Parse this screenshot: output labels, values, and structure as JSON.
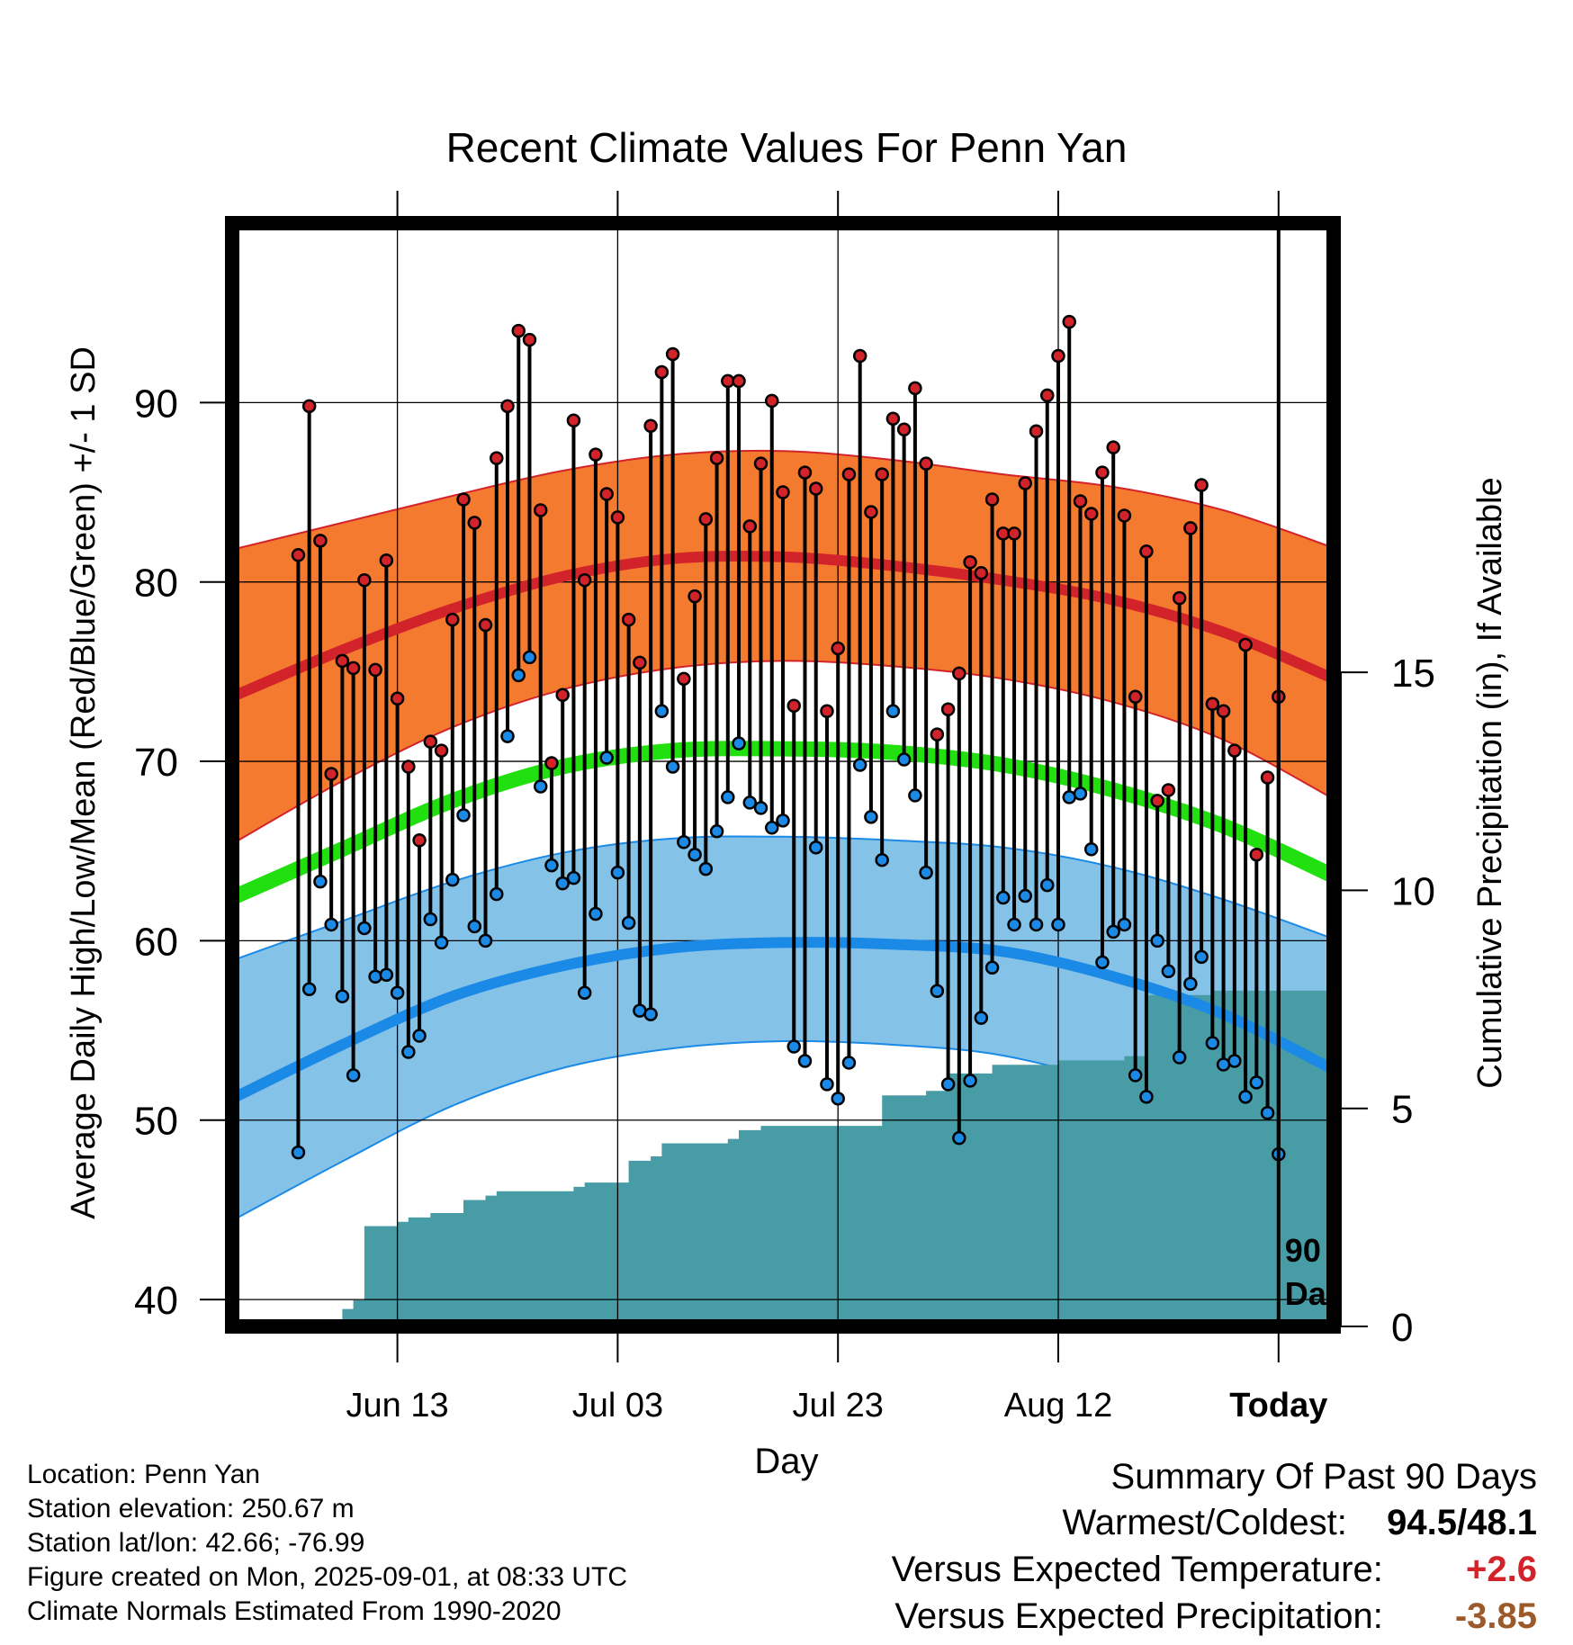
{
  "title": "Recent Climate Values For Penn Yan",
  "xlabel": "Day",
  "ylabel_left": "Average Daily High/Low/Mean (Red/Blue/Green) +/- 1 SD",
  "ylabel_right": "Cumulative Precipitation (in), If Available",
  "days_marker": [
    "90",
    "Days"
  ],
  "info": {
    "location": "Location: Penn Yan",
    "elevation": "Station elevation: 250.67 m",
    "latlon": "Station lat/lon: 42.66; -76.99",
    "created": "Figure created on Mon, 2025-09-01, at 08:33 UTC",
    "normals": "Climate Normals Estimated From 1990-2020"
  },
  "summary": {
    "heading": "Summary Of Past 90 Days",
    "warm_cold_label": "Warmest/Coldest:",
    "warm_cold_value": "94.5/48.1",
    "temp_label": "Versus Expected Temperature:",
    "temp_value": "+2.6",
    "precip_label": "Versus Expected Precipitation:",
    "precip_value": "-3.85"
  },
  "colors": {
    "high_band": "#f47a30",
    "high_line": "#d2232a",
    "low_band": "#85c2e8",
    "low_line": "#1a8ae6",
    "mean_line": "#22e010",
    "precip_fill": "#489ca6",
    "high_dot": "#d2232a",
    "low_dot": "#1a8ae6",
    "temp_anomaly": "#d2232a",
    "precip_anomaly": "#9c5a2a"
  },
  "chart_data": {
    "type": "line",
    "x_start_day": -89,
    "x_range_days": [
      -95,
      5
    ],
    "x_ticks": [
      {
        "day": -80,
        "label": "Jun 13"
      },
      {
        "day": -60,
        "label": "Jul 03"
      },
      {
        "day": -40,
        "label": "Jul 23"
      },
      {
        "day": -20,
        "label": "Aug 12"
      },
      {
        "day": 0,
        "label": "Today"
      }
    ],
    "y_temp_range": [
      38.5,
      100
    ],
    "y_temp_ticks": [
      40,
      50,
      60,
      70,
      80,
      90
    ],
    "y_precip_range": [
      0,
      25.3
    ],
    "y_precip_ticks": [
      0,
      5,
      10,
      15
    ],
    "grid": true,
    "normals": {
      "days": [
        -95,
        -85,
        -75,
        -65,
        -55,
        -45,
        -35,
        -25,
        -15,
        -5,
        5
      ],
      "high_mean": [
        73.6,
        76.2,
        78.5,
        80.3,
        81.3,
        81.4,
        80.9,
        80.1,
        79.0,
        77.2,
        74.6
      ],
      "high_upper": [
        81.8,
        83.3,
        84.8,
        86.2,
        87.1,
        87.3,
        86.8,
        86.0,
        85.3,
        84.0,
        81.9
      ],
      "high_lower": [
        65.4,
        68.9,
        71.9,
        74.0,
        75.2,
        75.6,
        75.3,
        74.6,
        73.3,
        71.2,
        67.9
      ],
      "mean": [
        62.4,
        65.1,
        67.8,
        69.7,
        70.6,
        70.7,
        70.5,
        69.8,
        68.4,
        66.4,
        63.6
      ],
      "low_mean": [
        51.2,
        54.2,
        56.9,
        58.6,
        59.6,
        59.9,
        59.8,
        59.4,
        58.0,
        55.9,
        52.8
      ],
      "low_upper": [
        58.9,
        61.1,
        63.3,
        64.9,
        65.7,
        65.8,
        65.6,
        65.2,
        64.1,
        62.3,
        60.1
      ],
      "low_lower": [
        44.4,
        47.7,
        50.8,
        52.9,
        54.0,
        54.4,
        54.2,
        53.6,
        51.9,
        48.8,
        45.2
      ]
    },
    "series": [
      {
        "name": "High",
        "values": [
          81.5,
          89.8,
          82.3,
          69.3,
          75.6,
          75.2,
          80.1,
          75.1,
          81.2,
          73.5,
          69.7,
          65.6,
          71.1,
          70.6,
          77.9,
          84.6,
          83.3,
          77.6,
          86.9,
          89.8,
          94.0,
          93.5,
          84.0,
          69.9,
          73.7,
          89.0,
          80.1,
          87.1,
          84.9,
          83.6,
          77.9,
          75.5,
          88.7,
          91.7,
          92.7,
          74.6,
          79.2,
          83.5,
          86.9,
          91.2,
          91.2,
          83.1,
          86.6,
          90.1,
          85.0,
          73.1,
          86.1,
          85.2,
          72.8,
          76.3,
          86.0,
          92.6,
          83.9,
          86.0,
          89.1,
          88.5,
          90.8,
          86.6,
          71.5,
          72.9,
          74.9,
          81.1,
          80.5,
          84.6,
          82.7,
          82.7,
          85.5,
          88.4,
          90.4,
          92.6,
          94.5,
          84.5,
          83.8,
          86.1,
          87.5,
          83.7,
          73.6,
          81.7,
          67.8,
          68.4,
          79.1,
          83.0,
          85.4,
          73.2,
          72.8,
          70.6,
          76.5,
          64.8,
          69.1,
          73.6
        ]
      },
      {
        "name": "Low",
        "values": [
          48.2,
          57.3,
          63.3,
          60.9,
          56.9,
          52.5,
          60.7,
          58.0,
          58.1,
          57.1,
          53.8,
          54.7,
          61.2,
          59.9,
          63.4,
          67.0,
          60.8,
          60.0,
          62.6,
          71.4,
          74.8,
          75.8,
          68.6,
          64.2,
          63.2,
          63.5,
          57.1,
          61.5,
          70.2,
          63.8,
          61.0,
          56.1,
          55.9,
          72.8,
          69.7,
          65.5,
          64.8,
          64.0,
          66.1,
          68.0,
          71.0,
          67.7,
          67.4,
          66.3,
          66.7,
          54.1,
          53.3,
          65.2,
          52.0,
          51.2,
          53.2,
          69.8,
          66.9,
          64.5,
          72.8,
          70.1,
          68.1,
          63.8,
          57.2,
          52.0,
          49.0,
          52.2,
          55.7,
          58.5,
          62.4,
          60.9,
          62.5,
          60.9,
          63.1,
          60.9,
          68.0,
          68.2,
          65.1,
          58.8,
          60.5,
          60.9,
          52.5,
          51.3,
          60.0,
          58.3,
          53.5,
          57.6,
          59.1,
          54.3,
          53.1,
          53.3,
          51.3,
          52.1,
          50.4,
          48.1
        ]
      },
      {
        "name": "Cumulative Precipitation",
        "days": [
          -87,
          -85,
          -84,
          -83,
          -80,
          -79,
          -77,
          -76,
          -74,
          -72,
          -71,
          -66,
          -64,
          -63,
          -60,
          -59,
          -57,
          -56,
          -54,
          -50,
          -49,
          -47,
          -43,
          -39,
          -38,
          -36,
          -32,
          -31,
          -30,
          -28,
          -26,
          -24,
          -22,
          -20,
          -18,
          -14,
          -12,
          -10,
          -8,
          -6,
          -4,
          -2,
          5
        ],
        "values": [
          0.0,
          0.4,
          0.6,
          2.3,
          2.4,
          2.5,
          2.6,
          2.6,
          2.9,
          3.0,
          3.1,
          3.1,
          3.2,
          3.3,
          3.3,
          3.8,
          3.9,
          4.2,
          4.2,
          4.3,
          4.5,
          4.6,
          4.6,
          4.6,
          4.6,
          5.3,
          5.4,
          5.4,
          5.8,
          5.8,
          6.0,
          6.0,
          6.0,
          6.1,
          6.1,
          6.2,
          7.6,
          7.6,
          7.6,
          7.7,
          7.7,
          7.7,
          7.7
        ]
      }
    ]
  }
}
